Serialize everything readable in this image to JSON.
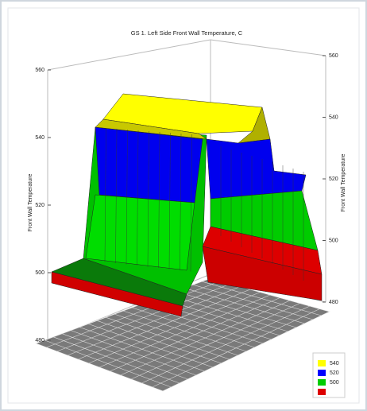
{
  "chart_data": {
    "type": "surface",
    "title": "GS 1. Left Side Front Wall Temperature, C",
    "zlabel": "Front Wall Temperature",
    "zlim": [
      480,
      560
    ],
    "zticks": [
      480,
      500,
      520,
      540,
      560
    ],
    "legend": [
      {
        "value": 540,
        "color": "#ffff00"
      },
      {
        "value": 520,
        "color": "#0000ff"
      },
      {
        "value": 500,
        "color": "#00cc00"
      }
    ]
  }
}
